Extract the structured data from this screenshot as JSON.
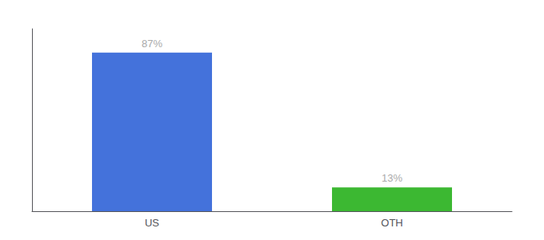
{
  "chart_data": {
    "type": "bar",
    "categories": [
      "US",
      "OTH"
    ],
    "values": [
      87,
      13
    ],
    "colors": [
      "#4472db",
      "#3cb832"
    ],
    "value_labels": [
      "87%",
      "13%"
    ],
    "data_labels": true,
    "ylim": [
      0,
      100
    ],
    "tick_labels": "x",
    "grid": false
  }
}
